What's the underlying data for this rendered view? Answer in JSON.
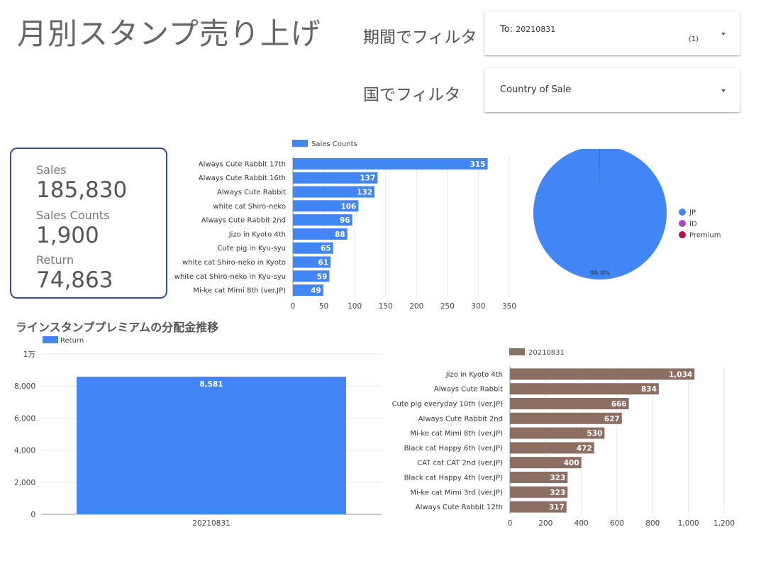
{
  "header": {
    "title": "月別スタンプ売り上げ",
    "period_filter_label": "期間でフィルタ",
    "country_filter_label": "国でフィルタ"
  },
  "filters": {
    "period": {
      "prefix": "To:",
      "value": "20210831",
      "count": "(1)",
      "icon": "caret-down-icon"
    },
    "country": {
      "value": "Country of Sale",
      "icon": "caret-down-icon"
    }
  },
  "scorecard": {
    "sales_label": "Sales",
    "sales_value": "185,830",
    "counts_label": "Sales Counts",
    "counts_value": "1,900",
    "return_label": "Return",
    "return_value": "74,863",
    "border_color": "#3b4f8c"
  },
  "chart_data": [
    {
      "type": "bar",
      "orientation": "horizontal",
      "categories": [
        "Always Cute Rabbit 17th",
        "Always Cute Rabbit 16th",
        "Always Cute Rabbit",
        "white cat Shiro-neko",
        "Always Cute Rabbit 2nd",
        "Jizo in Kyoto 4th",
        "Cute pig in Kyu-syu",
        "white cat Shiro-neko in Kyoto",
        "white cat Shiro-neko in Kyu-syu",
        "Mi-ke cat Mimi 8th (ver.JP)"
      ],
      "series": [
        {
          "name": "Sales Counts",
          "values": [
            315,
            137,
            132,
            106,
            96,
            88,
            65,
            61,
            59,
            49
          ],
          "color": "#4285f4"
        }
      ],
      "xlim": [
        0,
        350
      ],
      "xticks": [
        "0",
        "50",
        "100",
        "150",
        "200",
        "250",
        "300",
        "350"
      ],
      "legend": "top-left",
      "grid": true
    },
    {
      "type": "pie",
      "slices": [
        {
          "label": "JP",
          "value": 99.9,
          "color": "#4285f4"
        },
        {
          "label": "ID",
          "value": 0.05,
          "color": "#ab47bc"
        },
        {
          "label": "Premium",
          "value": 0.05,
          "color": "#ad1457"
        }
      ],
      "data_label": "99.9%",
      "legend": "right"
    },
    {
      "type": "bar",
      "orientation": "vertical",
      "title": "ラインスタンププレミアムの分配金推移",
      "categories": [
        "20210831"
      ],
      "series": [
        {
          "name": "Return",
          "values": [
            8581
          ],
          "color": "#4285f4"
        }
      ],
      "data_labels": [
        "8,581"
      ],
      "ylim": [
        0,
        10000
      ],
      "yticks": [
        "0",
        "2,000",
        "4,000",
        "6,000",
        "8,000",
        "1万"
      ],
      "legend": "top-left",
      "grid": true
    },
    {
      "type": "bar",
      "orientation": "horizontal",
      "categories": [
        "Jizo in Kyoto 4th",
        "Always Cute Rabbit",
        "Cute pig everyday 10th (ver.JP)",
        "Always Cute Rabbit 2nd",
        "Mi-ke cat Mimi 8th (ver.JP)",
        "Black cat Happy 6th (ver.JP)",
        "CAT cat CAT 2nd (ver.JP)",
        "Black cat Happy 4th (ver.JP)",
        "Mi-ke cat Mimi 3rd (ver.JP)",
        "Always Cute Rabbit 12th"
      ],
      "series": [
        {
          "name": "20210831",
          "values": [
            1034,
            834,
            666,
            627,
            530,
            472,
            400,
            323,
            323,
            317
          ],
          "color": "#8d6e63"
        }
      ],
      "data_labels": [
        "1,034",
        "834",
        "666",
        "627",
        "530",
        "472",
        "400",
        "323",
        "323",
        "317"
      ],
      "xlim": [
        0,
        1200
      ],
      "xticks": [
        "0",
        "200",
        "400",
        "600",
        "800",
        "1,000",
        "1,200"
      ],
      "legend": "top-left",
      "grid": true
    }
  ]
}
